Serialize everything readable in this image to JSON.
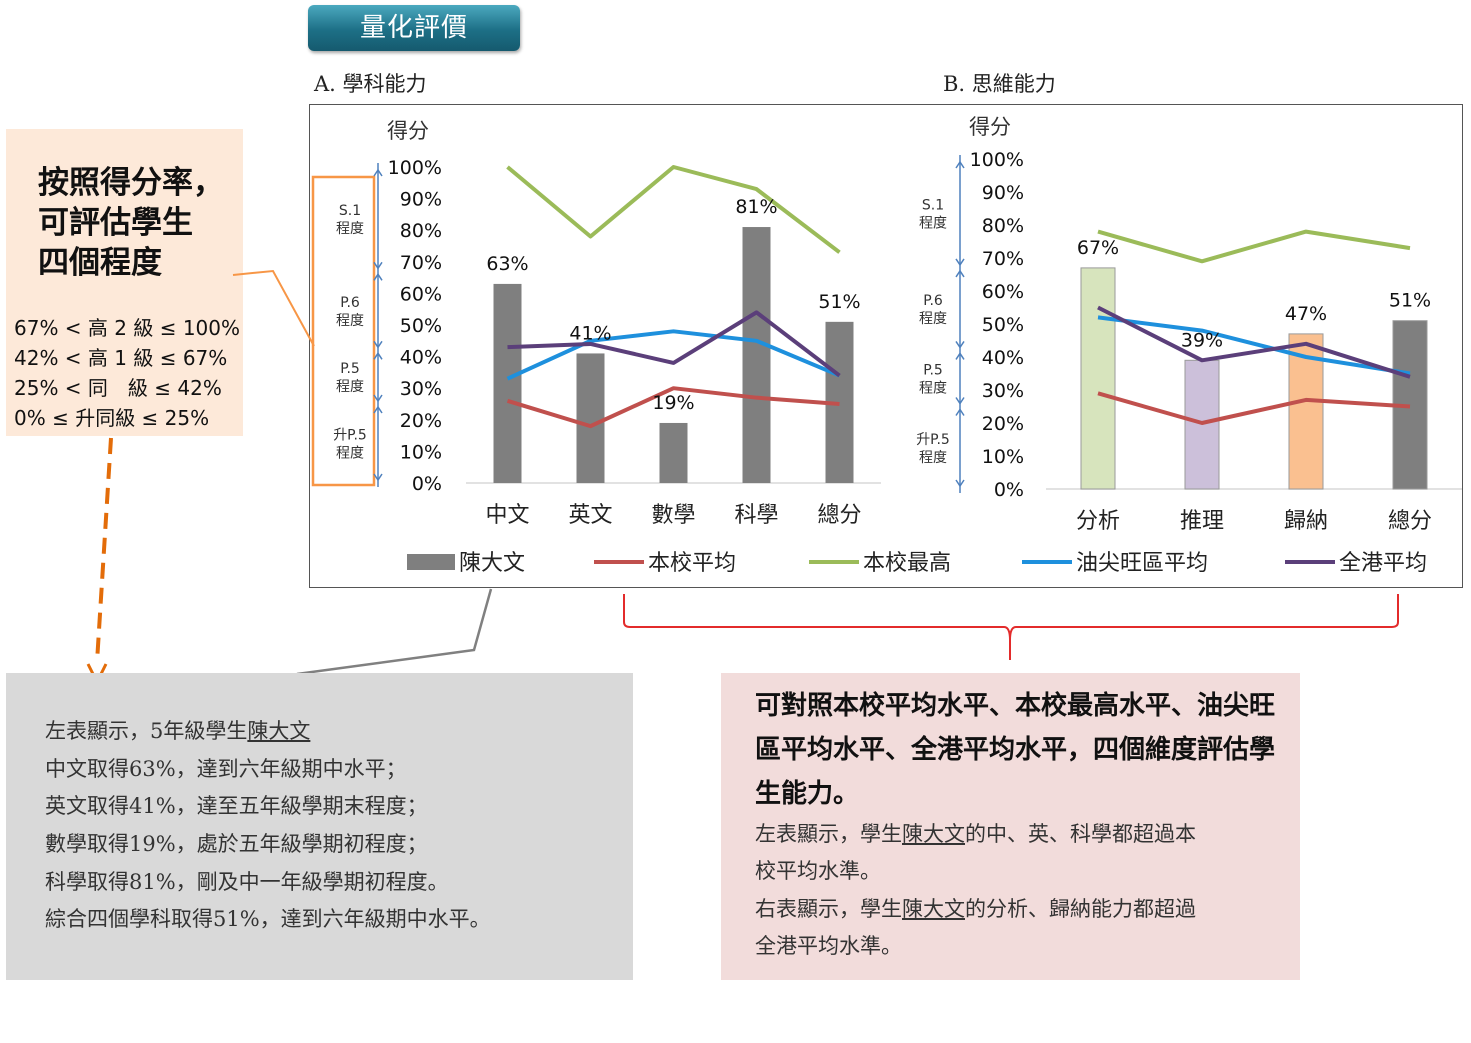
{
  "banner": {
    "title": "量化評價"
  },
  "sections": {
    "a_title": "A. 學科能力",
    "b_title": "B. 思維能力"
  },
  "grade_box": {
    "heading": [
      "按照得分率，",
      "可評估學生",
      "四個程度"
    ],
    "rows": [
      "67% < 高 2 級 ≤ 100%",
      "42% < 高 1 級 ≤ 67%",
      "25% < 同　級 ≤ 42%",
      "0% ≤ 升同級 ≤ 25%"
    ]
  },
  "level_labels": [
    {
      "line1": "S.1",
      "line2": "程度"
    },
    {
      "line1": "P.6",
      "line2": "程度"
    },
    {
      "line1": "P.5",
      "line2": "程度"
    },
    {
      "line1": "升P.5",
      "line2": "程度"
    }
  ],
  "colors": {
    "student_bar": "#7f7f7f",
    "school_avg": "#c0504d",
    "school_max": "#9bbb59",
    "district_avg": "#1e90dd",
    "hk_avg": "#5b3f7a",
    "analysis_bar": "#d7e4bd",
    "reasoning_bar": "#ccc0da",
    "induction_bar": "#fac090",
    "arrow": "#4f81bd",
    "orange": "#f79646",
    "dash_orange": "#e36c09",
    "brace_red": "#e32b2b"
  },
  "chart_data": [
    {
      "type": "bar",
      "title": "A. 學科能力",
      "ylabel": "得分",
      "ylim": [
        0,
        100
      ],
      "yticks": [
        "0%",
        "10%",
        "20%",
        "30%",
        "40%",
        "50%",
        "60%",
        "70%",
        "80%",
        "90%",
        "100%"
      ],
      "categories": [
        "中文",
        "英文",
        "數學",
        "科學",
        "總分"
      ],
      "bar_series": {
        "name": "陳大文",
        "values": [
          63,
          41,
          19,
          81,
          51
        ],
        "labels": [
          "63%",
          "41%",
          "19%",
          "81%",
          "51%"
        ]
      },
      "line_series": [
        {
          "name": "本校平均",
          "values": [
            26,
            18,
            30,
            27,
            25
          ]
        },
        {
          "name": "本校最高",
          "values": [
            100,
            78,
            100,
            93,
            73
          ]
        },
        {
          "name": "油尖旺區平均",
          "values": [
            33,
            45,
            48,
            45,
            34
          ]
        },
        {
          "name": "全港平均",
          "values": [
            43,
            44,
            38,
            54,
            34
          ]
        }
      ]
    },
    {
      "type": "bar",
      "title": "B. 思維能力",
      "ylabel": "得分",
      "ylim": [
        0,
        100
      ],
      "yticks": [
        "0%",
        "10%",
        "20%",
        "30%",
        "40%",
        "50%",
        "60%",
        "70%",
        "80%",
        "90%",
        "100%"
      ],
      "categories": [
        "分析",
        "推理",
        "歸納",
        "總分"
      ],
      "bar_series": {
        "name": "陳大文",
        "values": [
          67,
          39,
          47,
          51
        ],
        "labels": [
          "67%",
          "39%",
          "47%",
          "51%"
        ]
      },
      "line_series": [
        {
          "name": "本校平均",
          "values": [
            29,
            20,
            27,
            25
          ]
        },
        {
          "name": "本校最高",
          "values": [
            78,
            69,
            78,
            73
          ]
        },
        {
          "name": "油尖旺區平均",
          "values": [
            52,
            48,
            40,
            35
          ]
        },
        {
          "name": "全港平均",
          "values": [
            55,
            39,
            44,
            34
          ]
        }
      ]
    }
  ],
  "legend": [
    "陳大文",
    "本校平均",
    "本校最高",
    "油尖旺區平均",
    "全港平均"
  ],
  "left_note": {
    "line1_prefix": "左表顯示，5年級學生",
    "student_name": "陳大文",
    "lines": [
      "中文取得63%，達到六年級期中水平；",
      "英文取得41%，達至五年級學期末程度；",
      "數學取得19%，處於五年級學期初程度；",
      "科學取得81%，剛及中一年級學期初程度。",
      "綜合四個學科取得51%，達到六年級期中水平。"
    ]
  },
  "right_note": {
    "heading": "可對照本校平均水平、本校最高水平、油尖旺區平均水平、全港平均水平，四個維度評估學生能力。",
    "p1_prefix": "左表顯示，學生",
    "p1_name": "陳大文",
    "p1_suffix_a": "的中、英、科學都超過本",
    "p1_suffix_b": "校平均水準。",
    "p2_prefix": "右表顯示，學生",
    "p2_name": "陳大文",
    "p2_suffix_a": "的分析、歸納能力都超過",
    "p2_suffix_b": "全港平均水準。"
  }
}
